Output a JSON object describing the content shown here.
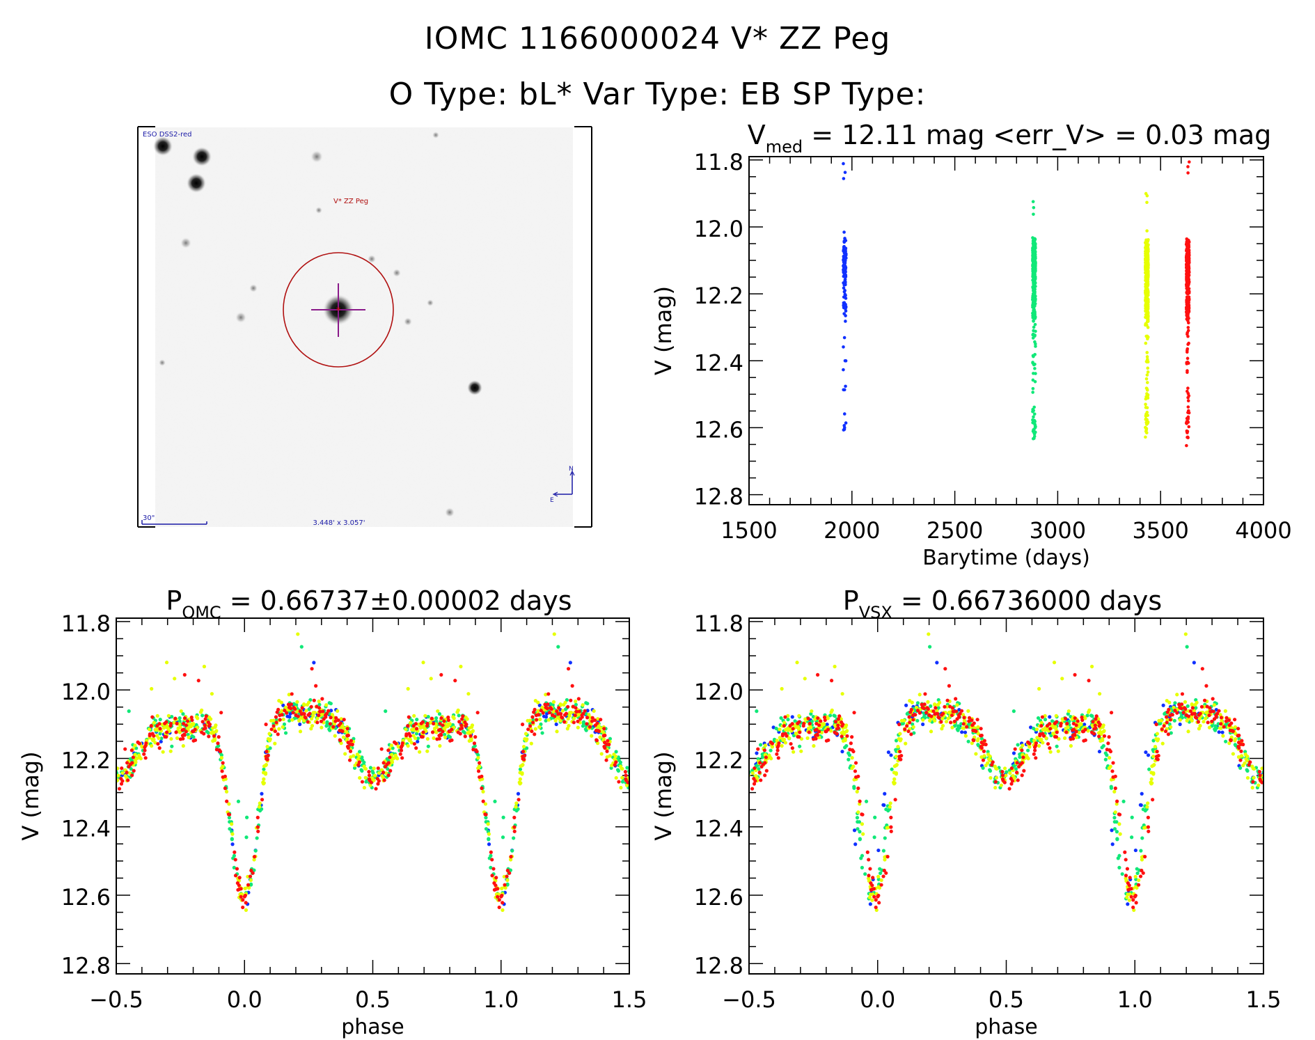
{
  "header": {
    "line1": "IOMC 1166000024    V* ZZ Peg",
    "line2": "O Type: bL*  Var Type: EB  SP Type:"
  },
  "finder_chart": {
    "survey_label": "ESO DSS2-red",
    "target_label": "V* ZZ Peg",
    "scale_bar_label": "30\"",
    "field_size_label": "3.448' x 3.057'",
    "north_label": "N",
    "east_label": "E",
    "colors": {
      "overlay_text": "#1a1aa6",
      "target": "#b01010",
      "crosshair": "#8a1a8a"
    }
  },
  "season_colors": [
    "#1030ff",
    "#10e878",
    "#e6ff00",
    "#ff1010"
  ],
  "chart_data": [
    {
      "id": "lightcurve-time",
      "type": "scatter",
      "title_main": "V",
      "title_sub": "med",
      "title_rest": " = 12.11 mag <err_V> = 0.03 mag",
      "xlabel": "Barytime (days)",
      "ylabel": "V (mag)",
      "xlim": [
        1500,
        4000
      ],
      "ylim": [
        11.79,
        12.83
      ],
      "y_inverted": true,
      "xticks": [
        1500,
        2000,
        2500,
        3000,
        3500,
        4000
      ],
      "xtick_labels": [
        "1500",
        "2000",
        "2500",
        "3000",
        "3500",
        "4000"
      ],
      "yticks": [
        11.8,
        12.0,
        12.2,
        12.4,
        12.6,
        12.8
      ],
      "ytick_labels": [
        "11.8",
        "12.0",
        "12.2",
        "12.4",
        "12.6",
        "12.8"
      ],
      "series": [
        {
          "name": "season-1",
          "color": "#1030ff",
          "x_center": 1965,
          "v_range": [
            11.81,
            12.67
          ],
          "approx_points": 120
        },
        {
          "name": "season-2",
          "color": "#10e878",
          "x_center": 2885,
          "v_range": [
            11.92,
            12.65
          ],
          "approx_points": 420
        },
        {
          "name": "season-3",
          "color": "#e6ff00",
          "x_center": 3433,
          "v_range": [
            11.9,
            12.66
          ],
          "approx_points": 520
        },
        {
          "name": "season-4",
          "color": "#ff1010",
          "x_center": 3632,
          "v_range": [
            11.8,
            12.67
          ],
          "approx_points": 380
        }
      ],
      "grid": false,
      "legend": "none"
    },
    {
      "id": "phased-omc",
      "type": "scatter",
      "title_main": "P",
      "title_sub": "OMC",
      "title_rest": " = 0.66737±0.00002 days",
      "xlabel": "phase",
      "ylabel": "V (mag)",
      "xlim": [
        -0.5,
        1.5
      ],
      "ylim": [
        11.79,
        12.83
      ],
      "y_inverted": true,
      "xticks": [
        -0.5,
        0.0,
        0.5,
        1.0,
        1.5
      ],
      "xtick_labels": [
        "−0.5",
        "0.0",
        "0.5",
        "1.0",
        "1.5"
      ],
      "yticks": [
        11.8,
        12.0,
        12.2,
        12.4,
        12.6,
        12.8
      ],
      "ytick_labels": [
        "11.8",
        "12.0",
        "12.2",
        "12.4",
        "12.6",
        "12.8"
      ],
      "light_curve_model": {
        "primary_min": {
          "phase": 0.0,
          "v": 12.64
        },
        "max_1": {
          "phase": 0.25,
          "v": 12.04
        },
        "secondary_min": {
          "phase": 0.5,
          "v": 12.28
        },
        "max_2": {
          "phase": 0.72,
          "v": 12.08
        }
      },
      "season_phase_shift": [
        0.0,
        0.0,
        0.0,
        0.0
      ],
      "grid": false,
      "legend": "none"
    },
    {
      "id": "phased-vsx",
      "type": "scatter",
      "title_main": "P",
      "title_sub": "VSX",
      "title_rest": " = 0.66736000 days",
      "xlabel": "phase",
      "ylabel": "V (mag)",
      "xlim": [
        -0.5,
        1.5
      ],
      "ylim": [
        11.79,
        12.83
      ],
      "y_inverted": true,
      "xticks": [
        -0.5,
        0.0,
        0.5,
        1.0,
        1.5
      ],
      "xtick_labels": [
        "−0.5",
        "0.0",
        "0.5",
        "1.0",
        "1.5"
      ],
      "yticks": [
        11.8,
        12.0,
        12.2,
        12.4,
        12.6,
        12.8
      ],
      "ytick_labels": [
        "11.8",
        "12.0",
        "12.2",
        "12.4",
        "12.6",
        "12.8"
      ],
      "light_curve_model": {
        "primary_min": {
          "phase": 0.0,
          "v": 12.64
        },
        "max_1": {
          "phase": 0.25,
          "v": 12.04
        },
        "secondary_min": {
          "phase": 0.5,
          "v": 12.28
        },
        "max_2": {
          "phase": 0.72,
          "v": 12.08
        }
      },
      "season_phase_shift": [
        -0.04,
        -0.02,
        -0.01,
        0.0
      ],
      "grid": false,
      "legend": "none"
    }
  ]
}
